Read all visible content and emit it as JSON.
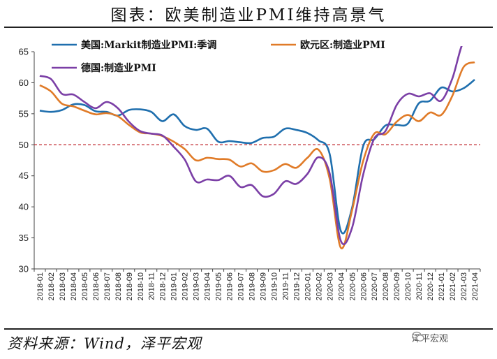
{
  "title": "图表：欧美制造业PMI维持高景气",
  "source": "资料来源：Wind，泽平宏观",
  "watermark": "泽平宏观",
  "colors": {
    "us": "#1f6fae",
    "euro": "#e07b28",
    "germany": "#7b3fa6",
    "reference": "#c0262d"
  },
  "chart_data": {
    "type": "line",
    "ylim": [
      30,
      65
    ],
    "yticks": [
      30,
      35,
      40,
      45,
      50,
      55,
      60,
      65
    ],
    "reference_line": 50,
    "legend_position": "top",
    "x": [
      "2018-01",
      "2018-02",
      "2018-03",
      "2018-04",
      "2018-05",
      "2018-06",
      "2018-07",
      "2018-08",
      "2018-09",
      "2018-10",
      "2018-11",
      "2018-12",
      "2019-01",
      "2019-02",
      "2019-03",
      "2019-04",
      "2019-05",
      "2019-06",
      "2019-07",
      "2019-08",
      "2019-09",
      "2019-10",
      "2019-11",
      "2019-12",
      "2020-01",
      "2020-02",
      "2020-03",
      "2020-04",
      "2020-05",
      "2020-06",
      "2020-07",
      "2020-08",
      "2020-09",
      "2020-10",
      "2020-11",
      "2020-12",
      "2021-01",
      "2021-02",
      "2021-03",
      "2021-04"
    ],
    "series": [
      {
        "name": "美国:Markit制造业PMI:季调",
        "color_key": "us",
        "values": [
          55.5,
          55.3,
          55.6,
          56.5,
          56.4,
          55.4,
          55.3,
          54.7,
          55.6,
          55.7,
          55.3,
          53.8,
          54.9,
          53.0,
          52.4,
          52.6,
          50.5,
          50.6,
          50.4,
          50.3,
          51.1,
          51.3,
          52.6,
          52.4,
          51.9,
          50.7,
          48.5,
          36.1,
          39.8,
          49.8,
          50.9,
          53.1,
          53.2,
          53.4,
          56.7,
          57.1,
          59.2,
          58.6,
          59.1,
          60.5
        ]
      },
      {
        "name": "欧元区:制造业PMI",
        "color_key": "euro",
        "values": [
          59.6,
          58.6,
          56.6,
          56.2,
          55.5,
          54.9,
          55.1,
          54.6,
          53.2,
          52.0,
          51.8,
          51.4,
          50.5,
          49.3,
          47.5,
          47.9,
          47.7,
          47.6,
          46.5,
          47.0,
          45.7,
          45.9,
          46.9,
          46.3,
          47.9,
          49.2,
          44.5,
          33.4,
          39.4,
          47.4,
          51.8,
          51.7,
          53.7,
          54.8,
          53.8,
          55.2,
          54.8,
          57.9,
          62.5,
          63.3
        ]
      },
      {
        "name": "德国:制造业PMI",
        "color_key": "germany",
        "values": [
          61.1,
          60.6,
          58.2,
          58.1,
          56.9,
          55.9,
          56.9,
          55.9,
          53.7,
          52.2,
          51.8,
          51.5,
          49.7,
          47.6,
          44.1,
          44.4,
          44.3,
          45.0,
          43.2,
          43.5,
          41.7,
          42.1,
          44.1,
          43.7,
          45.3,
          48.0,
          45.4,
          34.5,
          36.6,
          45.2,
          51.0,
          52.2,
          56.4,
          58.2,
          57.8,
          58.3,
          57.1,
          60.7,
          66.6,
          66.4
        ]
      }
    ]
  }
}
